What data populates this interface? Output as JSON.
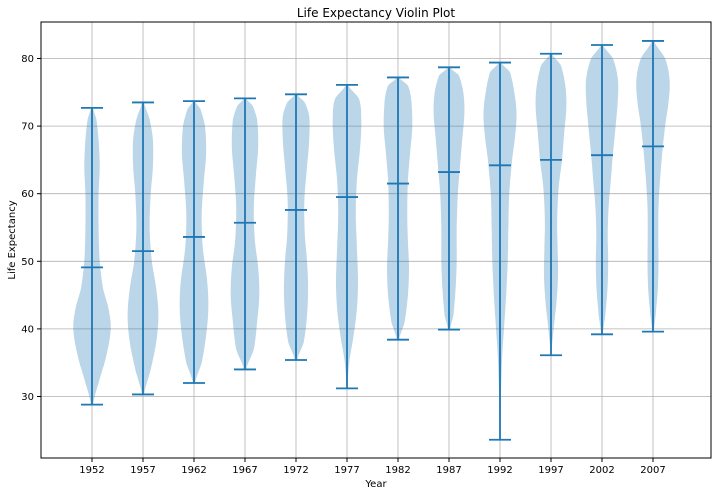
{
  "chart_data": {
    "type": "violin",
    "title": "Life Expectancy Violin Plot",
    "xlabel": "Year",
    "ylabel": "Life Expectancy",
    "ylim": [
      20.9,
      85.4
    ],
    "yticks": [
      30,
      40,
      50,
      60,
      70,
      80
    ],
    "grid": true,
    "colors": {
      "body": "#1f77b4",
      "body_opacity": 0.3,
      "lines": "#1f77b4"
    },
    "categories": [
      "1952",
      "1957",
      "1962",
      "1967",
      "1972",
      "1977",
      "1982",
      "1987",
      "1992",
      "1997",
      "2002",
      "2007"
    ],
    "violins": [
      {
        "year": "1952",
        "min": 28.8,
        "max": 72.7,
        "mean": 49.1,
        "profile": [
          [
            28.8,
            0.05
          ],
          [
            32,
            0.3
          ],
          [
            36,
            0.65
          ],
          [
            40,
            0.85
          ],
          [
            43,
            0.75
          ],
          [
            46,
            0.5
          ],
          [
            50,
            0.35
          ],
          [
            55,
            0.3
          ],
          [
            60,
            0.3
          ],
          [
            64,
            0.35
          ],
          [
            68,
            0.3
          ],
          [
            71,
            0.2
          ],
          [
            72.7,
            0.05
          ]
        ]
      },
      {
        "year": "1957",
        "min": 30.3,
        "max": 73.5,
        "mean": 51.5,
        "profile": [
          [
            30.3,
            0.05
          ],
          [
            34,
            0.35
          ],
          [
            38,
            0.6
          ],
          [
            42,
            0.7
          ],
          [
            46,
            0.6
          ],
          [
            50,
            0.4
          ],
          [
            55,
            0.3
          ],
          [
            60,
            0.35
          ],
          [
            64,
            0.45
          ],
          [
            68,
            0.45
          ],
          [
            71,
            0.3
          ],
          [
            73.5,
            0.05
          ]
        ]
      },
      {
        "year": "1962",
        "min": 32.0,
        "max": 73.7,
        "mean": 53.6,
        "profile": [
          [
            32,
            0.05
          ],
          [
            35,
            0.35
          ],
          [
            39,
            0.55
          ],
          [
            43,
            0.65
          ],
          [
            47,
            0.6
          ],
          [
            52,
            0.4
          ],
          [
            57,
            0.35
          ],
          [
            62,
            0.45
          ],
          [
            66,
            0.55
          ],
          [
            70,
            0.5
          ],
          [
            72.5,
            0.3
          ],
          [
            73.7,
            0.05
          ]
        ]
      },
      {
        "year": "1967",
        "min": 34.0,
        "max": 74.1,
        "mean": 55.7,
        "profile": [
          [
            34,
            0.05
          ],
          [
            37,
            0.4
          ],
          [
            41,
            0.55
          ],
          [
            45,
            0.65
          ],
          [
            49,
            0.6
          ],
          [
            53,
            0.45
          ],
          [
            58,
            0.4
          ],
          [
            63,
            0.5
          ],
          [
            67,
            0.6
          ],
          [
            71,
            0.55
          ],
          [
            73,
            0.35
          ],
          [
            74.1,
            0.05
          ]
        ]
      },
      {
        "year": "1972",
        "min": 35.4,
        "max": 74.7,
        "mean": 57.6,
        "profile": [
          [
            35.4,
            0.05
          ],
          [
            38,
            0.35
          ],
          [
            42,
            0.5
          ],
          [
            46,
            0.55
          ],
          [
            50,
            0.5
          ],
          [
            54,
            0.4
          ],
          [
            59,
            0.38
          ],
          [
            64,
            0.5
          ],
          [
            68,
            0.6
          ],
          [
            71.5,
            0.6
          ],
          [
            73.5,
            0.4
          ],
          [
            74.7,
            0.05
          ]
        ]
      },
      {
        "year": "1977",
        "min": 31.2,
        "max": 76.1,
        "mean": 59.5,
        "profile": [
          [
            31.2,
            0.02
          ],
          [
            35,
            0.1
          ],
          [
            39,
            0.3
          ],
          [
            43,
            0.45
          ],
          [
            47,
            0.5
          ],
          [
            52,
            0.45
          ],
          [
            57,
            0.4
          ],
          [
            62,
            0.45
          ],
          [
            67,
            0.6
          ],
          [
            71,
            0.65
          ],
          [
            74,
            0.55
          ],
          [
            76.1,
            0.05
          ]
        ]
      },
      {
        "year": "1982",
        "min": 38.4,
        "max": 77.2,
        "mean": 61.5,
        "profile": [
          [
            38.4,
            0.05
          ],
          [
            41,
            0.3
          ],
          [
            45,
            0.45
          ],
          [
            49,
            0.5
          ],
          [
            53,
            0.45
          ],
          [
            57,
            0.42
          ],
          [
            62,
            0.45
          ],
          [
            66,
            0.55
          ],
          [
            70,
            0.65
          ],
          [
            74,
            0.6
          ],
          [
            76,
            0.45
          ],
          [
            77.2,
            0.05
          ]
        ]
      },
      {
        "year": "1987",
        "min": 39.9,
        "max": 78.7,
        "mean": 63.2,
        "profile": [
          [
            39.9,
            0.05
          ],
          [
            42,
            0.2
          ],
          [
            46,
            0.3
          ],
          [
            50,
            0.35
          ],
          [
            55,
            0.35
          ],
          [
            60,
            0.4
          ],
          [
            64,
            0.5
          ],
          [
            68,
            0.6
          ],
          [
            72,
            0.7
          ],
          [
            75,
            0.65
          ],
          [
            77.5,
            0.45
          ],
          [
            78.7,
            0.05
          ]
        ]
      },
      {
        "year": "1992",
        "min": 23.6,
        "max": 79.4,
        "mean": 64.2,
        "profile": [
          [
            23.6,
            0.01
          ],
          [
            30,
            0.04
          ],
          [
            36,
            0.1
          ],
          [
            41,
            0.2
          ],
          [
            45,
            0.28
          ],
          [
            50,
            0.35
          ],
          [
            55,
            0.38
          ],
          [
            60,
            0.42
          ],
          [
            65,
            0.55
          ],
          [
            69,
            0.7
          ],
          [
            72,
            0.75
          ],
          [
            75,
            0.65
          ],
          [
            78,
            0.45
          ],
          [
            79.4,
            0.05
          ]
        ]
      },
      {
        "year": "1997",
        "min": 36.1,
        "max": 80.7,
        "mean": 65.0,
        "profile": [
          [
            36.1,
            0.02
          ],
          [
            40,
            0.12
          ],
          [
            44,
            0.25
          ],
          [
            48,
            0.32
          ],
          [
            52,
            0.3
          ],
          [
            56,
            0.28
          ],
          [
            61,
            0.35
          ],
          [
            65,
            0.5
          ],
          [
            69,
            0.6
          ],
          [
            73,
            0.7
          ],
          [
            76,
            0.65
          ],
          [
            79,
            0.45
          ],
          [
            80.7,
            0.05
          ]
        ]
      },
      {
        "year": "2002",
        "min": 39.2,
        "max": 82.0,
        "mean": 65.7,
        "profile": [
          [
            39.2,
            0.04
          ],
          [
            42,
            0.15
          ],
          [
            46,
            0.25
          ],
          [
            50,
            0.28
          ],
          [
            54,
            0.26
          ],
          [
            58,
            0.3
          ],
          [
            62,
            0.4
          ],
          [
            66,
            0.5
          ],
          [
            70,
            0.62
          ],
          [
            74,
            0.72
          ],
          [
            77,
            0.72
          ],
          [
            80,
            0.5
          ],
          [
            82,
            0.05
          ]
        ]
      },
      {
        "year": "2007",
        "min": 39.6,
        "max": 82.6,
        "mean": 67.0,
        "profile": [
          [
            39.6,
            0.04
          ],
          [
            42,
            0.12
          ],
          [
            46,
            0.22
          ],
          [
            50,
            0.25
          ],
          [
            54,
            0.24
          ],
          [
            58,
            0.25
          ],
          [
            62,
            0.32
          ],
          [
            66,
            0.42
          ],
          [
            70,
            0.55
          ],
          [
            74,
            0.72
          ],
          [
            77,
            0.75
          ],
          [
            80,
            0.55
          ],
          [
            82.6,
            0.05
          ]
        ]
      }
    ]
  }
}
